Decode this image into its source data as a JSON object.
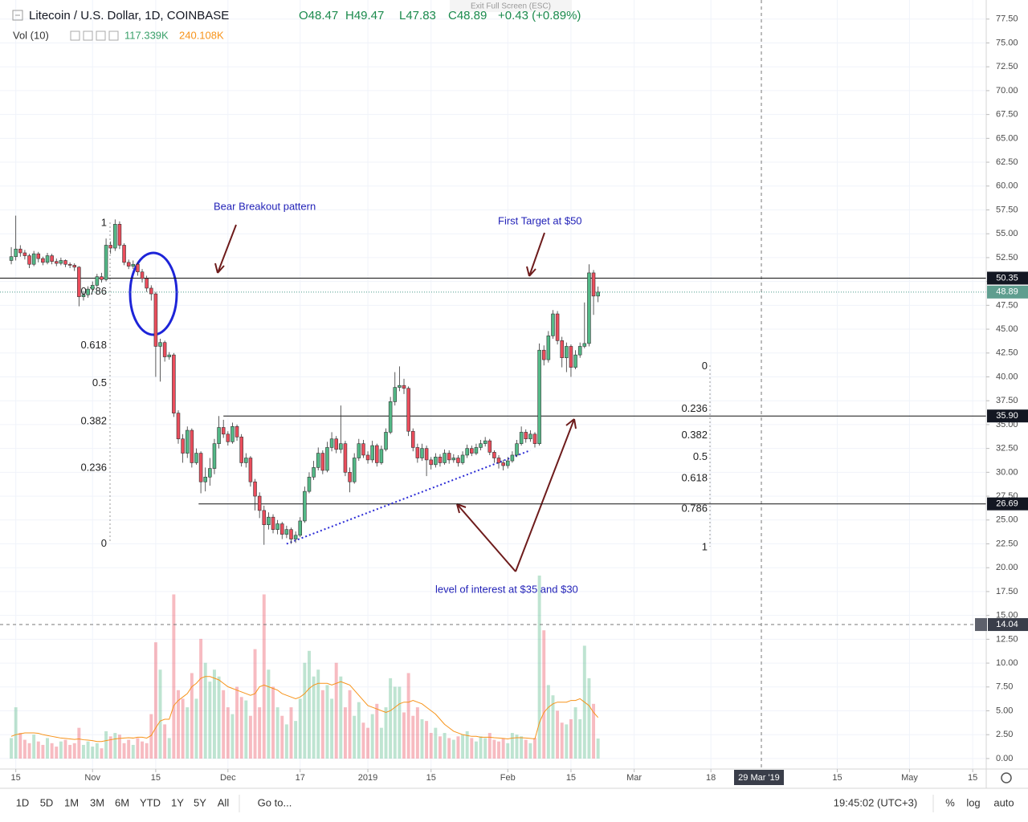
{
  "header": {
    "symbol": "Litecoin / U.S. Dollar, 1D, COINBASE",
    "open": "O48.47",
    "high": "H49.47",
    "low": "L47.83",
    "close": "C48.89",
    "change": "+0.43 (+0.89%)",
    "volume_label": "Vol (10)",
    "volume": "117.339K",
    "volume_ma": "240.108K",
    "exit": "Exit Full Screen (ESC)"
  },
  "chart_data": {
    "type": "candlestick",
    "open": [
      52.2,
      52.6,
      53.4,
      53.0,
      52.7,
      51.8,
      52.9,
      52.4,
      52.0,
      52.7,
      52.1,
      51.9,
      52.2,
      51.8,
      51.7,
      51.5,
      48.4,
      48.6,
      49.2,
      49.6,
      50.5,
      50.2,
      53.8,
      53.5,
      56.0,
      53.8,
      52.0,
      51.6,
      51.8,
      51.0,
      50.3,
      49.3,
      48.7,
      43.2,
      43.6,
      42.1,
      42.3,
      36.2,
      33.5,
      32.0,
      34.4,
      31.0,
      32.0,
      29.0,
      29.5,
      30.4,
      33.0,
      34.7,
      34.0,
      33.2,
      34.8,
      33.7,
      31.0,
      31.5,
      29.0,
      27.5,
      26.0,
      24.5,
      25.3,
      24.0,
      24.6,
      23.5,
      24.0,
      23.0,
      23.4,
      24.9,
      28.0,
      29.5,
      30.5,
      32.0,
      30.2,
      32.6,
      33.5,
      32.4,
      33.0,
      30.0,
      29.0,
      31.5,
      33.0,
      31.8,
      31.3,
      32.8,
      31.0,
      32.4,
      34.2,
      37.4,
      38.9,
      39.1,
      38.8,
      34.3,
      32.6,
      31.5,
      32.5,
      31.3,
      30.8,
      31.6,
      31.0,
      32.0,
      31.3,
      31.5,
      31.0,
      31.8,
      32.5,
      32.0,
      32.6,
      33.0,
      33.3,
      32.1,
      31.5,
      31.0,
      30.7,
      31.2,
      31.8,
      33.0,
      34.2,
      33.5,
      34.0,
      33.0,
      42.8,
      41.8,
      44.3,
      46.6,
      43.8,
      42.0,
      43.2,
      41.0,
      42.3,
      43.2,
      43.5,
      50.9,
      48.47
    ],
    "high": [
      53.6,
      56.9,
      53.8,
      53.3,
      52.9,
      53.2,
      53.1,
      52.6,
      53.0,
      52.9,
      52.4,
      52.5,
      52.3,
      52.0,
      51.9,
      51.6,
      49.0,
      49.5,
      50.0,
      50.8,
      50.9,
      54.5,
      54.2,
      56.5,
      56.3,
      54.0,
      52.3,
      52.2,
      52.0,
      51.3,
      50.6,
      49.6,
      48.9,
      44.0,
      43.8,
      42.6,
      42.5,
      36.5,
      34.0,
      34.8,
      34.6,
      32.5,
      32.2,
      30.5,
      31.5,
      33.5,
      35.9,
      35.5,
      34.3,
      35.2,
      35.0,
      34.0,
      32.0,
      31.7,
      29.3,
      27.9,
      26.5,
      25.8,
      25.6,
      25.0,
      24.8,
      24.4,
      24.2,
      23.8,
      25.3,
      28.5,
      30.0,
      31.2,
      32.6,
      32.3,
      33.2,
      34.2,
      33.8,
      37.0,
      33.3,
      30.5,
      32.0,
      33.5,
      33.4,
      32.2,
      33.3,
      33.0,
      32.8,
      34.6,
      37.9,
      40.5,
      41.1,
      39.8,
      39.0,
      34.6,
      33.0,
      33.0,
      32.8,
      31.6,
      32.0,
      31.9,
      32.4,
      32.3,
      31.9,
      31.8,
      32.2,
      32.9,
      32.8,
      33.0,
      33.4,
      33.7,
      33.5,
      32.3,
      31.8,
      31.3,
      31.6,
      32.2,
      33.4,
      34.8,
      34.5,
      34.4,
      34.2,
      43.5,
      43.3,
      44.8,
      47.0,
      46.9,
      44.2,
      43.6,
      43.4,
      42.8,
      43.6,
      47.8,
      51.8,
      51.2,
      49.47
    ],
    "low": [
      51.8,
      52.2,
      52.6,
      52.3,
      51.4,
      51.6,
      52.0,
      51.7,
      51.8,
      51.8,
      51.6,
      51.7,
      51.5,
      51.4,
      51.1,
      47.4,
      48.0,
      48.3,
      48.9,
      49.4,
      49.9,
      50.0,
      52.9,
      53.2,
      53.4,
      51.7,
      51.3,
      51.3,
      50.6,
      49.9,
      48.9,
      48.0,
      40.0,
      39.5,
      41.6,
      41.8,
      35.8,
      33.0,
      31.0,
      31.5,
      30.5,
      30.8,
      27.8,
      28.0,
      28.6,
      29.8,
      32.5,
      33.6,
      32.8,
      33.0,
      33.3,
      30.6,
      30.5,
      28.5,
      26.0,
      25.2,
      22.4,
      24.0,
      23.6,
      23.5,
      23.0,
      23.1,
      22.5,
      22.6,
      23.2,
      24.7,
      27.8,
      29.2,
      30.2,
      29.8,
      30.0,
      32.2,
      32.0,
      32.0,
      29.6,
      27.9,
      28.8,
      31.2,
      31.5,
      30.9,
      31.0,
      30.6,
      30.8,
      32.2,
      34.0,
      37.0,
      38.5,
      38.2,
      33.8,
      32.2,
      31.0,
      31.2,
      29.6,
      30.3,
      30.5,
      30.6,
      30.8,
      30.9,
      31.0,
      30.6,
      30.8,
      31.5,
      31.7,
      31.8,
      32.3,
      32.7,
      31.8,
      31.0,
      30.4,
      30.2,
      30.4,
      31.0,
      31.6,
      32.8,
      33.1,
      33.2,
      32.6,
      32.8,
      41.2,
      41.5,
      44.0,
      43.4,
      41.0,
      40.5,
      40.0,
      40.8,
      42.0,
      43.0,
      43.2,
      46.5,
      47.83
    ],
    "close": [
      52.6,
      53.4,
      53.0,
      52.7,
      51.8,
      52.9,
      52.4,
      52.0,
      52.7,
      52.1,
      51.9,
      52.2,
      51.8,
      51.7,
      51.5,
      48.4,
      48.6,
      49.2,
      49.6,
      50.5,
      50.2,
      53.8,
      53.5,
      56.0,
      53.8,
      52.0,
      51.6,
      51.8,
      51.0,
      50.3,
      49.3,
      48.7,
      43.2,
      43.6,
      42.1,
      42.3,
      36.2,
      33.5,
      32.0,
      34.4,
      31.0,
      32.0,
      29.0,
      29.5,
      30.4,
      33.0,
      34.7,
      34.0,
      33.2,
      34.8,
      33.7,
      31.0,
      31.5,
      29.0,
      27.5,
      26.0,
      24.5,
      25.3,
      24.0,
      24.6,
      23.5,
      24.0,
      23.0,
      23.4,
      24.9,
      28.0,
      29.5,
      30.5,
      32.0,
      30.2,
      32.6,
      33.5,
      32.4,
      33.0,
      30.0,
      29.0,
      31.5,
      33.0,
      31.8,
      31.3,
      32.8,
      31.0,
      32.4,
      34.2,
      37.4,
      38.9,
      39.1,
      38.8,
      34.3,
      32.6,
      31.5,
      32.5,
      31.3,
      30.8,
      31.6,
      31.0,
      32.0,
      31.3,
      31.5,
      31.0,
      31.8,
      32.5,
      32.0,
      32.6,
      33.0,
      33.3,
      32.1,
      31.5,
      31.0,
      30.7,
      31.2,
      31.8,
      33.0,
      34.2,
      33.5,
      34.0,
      33.0,
      42.8,
      41.8,
      44.3,
      46.6,
      43.8,
      42.0,
      43.2,
      41.0,
      42.3,
      43.2,
      43.5,
      50.9,
      48.47,
      48.89
    ],
    "up_color": "#53b987",
    "down_color": "#eb4d5c",
    "volume": {
      "values": [
        120,
        300,
        150,
        110,
        90,
        140,
        100,
        80,
        120,
        90,
        70,
        100,
        110,
        80,
        90,
        180,
        80,
        100,
        70,
        90,
        60,
        160,
        130,
        150,
        140,
        90,
        110,
        80,
        120,
        100,
        90,
        260,
        680,
        520,
        200,
        120,
        960,
        400,
        350,
        300,
        500,
        350,
        700,
        560,
        450,
        520,
        480,
        400,
        300,
        260,
        420,
        360,
        340,
        250,
        640,
        300,
        960,
        520,
        420,
        300,
        250,
        200,
        300,
        220,
        350,
        560,
        630,
        480,
        520,
        400,
        430,
        350,
        560,
        480,
        300,
        400,
        250,
        330,
        210,
        180,
        260,
        320,
        180,
        300,
        470,
        420,
        420,
        270,
        500,
        250,
        300,
        230,
        220,
        150,
        180,
        130,
        150,
        120,
        110,
        130,
        140,
        160,
        120,
        100,
        130,
        120,
        150,
        110,
        100,
        120,
        90,
        150,
        140,
        130,
        110,
        90,
        120,
        1070,
        750,
        430,
        370,
        280,
        210,
        200,
        230,
        300,
        230,
        660,
        470,
        320,
        117.339
      ],
      "ma": [
        130,
        140,
        145,
        150,
        150,
        150,
        148,
        140,
        135,
        130,
        125,
        120,
        118,
        115,
        112,
        115,
        110,
        108,
        105,
        100,
        100,
        105,
        110,
        115,
        118,
        120,
        122,
        120,
        125,
        125,
        120,
        135,
        180,
        220,
        230,
        230,
        310,
        340,
        360,
        380,
        420,
        440,
        470,
        480,
        480,
        470,
        460,
        440,
        420,
        410,
        400,
        390,
        380,
        370,
        380,
        420,
        430,
        420,
        410,
        400,
        380,
        370,
        360,
        350,
        360,
        380,
        410,
        430,
        440,
        440,
        440,
        430,
        440,
        450,
        440,
        430,
        400,
        370,
        340,
        310,
        300,
        290,
        280,
        270,
        280,
        300,
        320,
        330,
        330,
        340,
        330,
        320,
        300,
        280,
        260,
        230,
        200,
        180,
        160,
        150,
        140,
        135,
        130,
        130,
        125,
        125,
        125,
        122,
        120,
        118,
        115,
        120,
        122,
        122,
        120,
        118,
        115,
        210,
        270,
        300,
        320,
        330,
        330,
        330,
        340,
        340,
        350,
        330,
        310,
        270,
        240.108
      ],
      "lim": [
        0,
        1150
      ],
      "ma_color": "#f7931a"
    },
    "xlim": [
      -2.5,
      216
    ],
    "xticks": [
      {
        "value": 1,
        "label": "15"
      },
      {
        "value": 18,
        "label": "Nov"
      },
      {
        "value": 32,
        "label": "15"
      },
      {
        "value": 48,
        "label": "Dec"
      },
      {
        "value": 64,
        "label": "17"
      },
      {
        "value": 79,
        "label": "2019"
      },
      {
        "value": 93,
        "label": "15"
      },
      {
        "value": 110,
        "label": "Feb"
      },
      {
        "value": 124,
        "label": "15"
      },
      {
        "value": 138,
        "label": "Mar"
      },
      {
        "value": 155,
        "label": "18"
      },
      {
        "value": 183,
        "label": "15"
      },
      {
        "value": 199,
        "label": "May"
      },
      {
        "value": 213,
        "label": "15"
      }
    ],
    "ylim": [
      -1.1,
      79.5
    ],
    "yticks": [
      {
        "value": 0,
        "label": "0.00"
      },
      {
        "value": 2.5,
        "label": "2.50"
      },
      {
        "value": 5,
        "label": "5.00"
      },
      {
        "value": 7.5,
        "label": "7.50"
      },
      {
        "value": 10,
        "label": "10.00"
      },
      {
        "value": 12.5,
        "label": "12.50"
      },
      {
        "value": 15,
        "label": "15.00"
      },
      {
        "value": 17.5,
        "label": "17.50"
      },
      {
        "value": 20,
        "label": "20.00"
      },
      {
        "value": 22.5,
        "label": "22.50"
      },
      {
        "value": 25,
        "label": "25.00"
      },
      {
        "value": 27.5,
        "label": "27.50"
      },
      {
        "value": 30,
        "label": "30.00"
      },
      {
        "value": 32.5,
        "label": "32.50"
      },
      {
        "value": 35,
        "label": "35.00"
      },
      {
        "value": 37.5,
        "label": "37.50"
      },
      {
        "value": 40,
        "label": "40.00"
      },
      {
        "value": 42.5,
        "label": "42.50"
      },
      {
        "value": 45,
        "label": "45.00"
      },
      {
        "value": 47.5,
        "label": "47.50"
      },
      {
        "value": 50,
        "label": "50.00"
      },
      {
        "value": 52.5,
        "label": "52.50"
      },
      {
        "value": 55,
        "label": "55.00"
      },
      {
        "value": 57.5,
        "label": "57.50"
      },
      {
        "value": 60,
        "label": "60.00"
      },
      {
        "value": 62.5,
        "label": "62.50"
      },
      {
        "value": 65,
        "label": "65.00"
      },
      {
        "value": 67.5,
        "label": "67.50"
      },
      {
        "value": 70,
        "label": "70.00"
      },
      {
        "value": 72.5,
        "label": "72.50"
      },
      {
        "value": 75,
        "label": "75.00"
      },
      {
        "value": 77.5,
        "label": "77.50"
      }
    ],
    "grid": true,
    "levels": [
      {
        "value": 50.35
      },
      {
        "value": {
          "value": 35.9,
          "label": "35.90"
        },
        "from": 47
      },
      {
        "value": 26.69,
        "from": 41.5
      }
    ],
    "crosshair": {
      "price": 14.04,
      "index": 166,
      "date_label": "29 Mar '19"
    },
    "fib": [
      {
        "levels": [
          1,
          0.786,
          0.618,
          0.5,
          0.382,
          0.236,
          0
        ],
        "price_at_0": 22.5,
        "price_at_1": 56.1
      },
      {
        "levels": [
          0,
          0.236,
          0.382,
          0.5,
          0.618,
          0.786,
          1
        ],
        "price_at_0": 41.1,
        "price_at_1": 22.1
      }
    ],
    "trendline": {
      "from": [
        61,
        22.5
      ],
      "to": [
        115,
        32.3
      ]
    },
    "annotations": [
      "Bear Breakout pattern",
      "First Target at $50",
      "level of interest at $35 and $30"
    ]
  },
  "toolbar": {
    "ranges": [
      "1D",
      "5D",
      "1M",
      "3M",
      "6M",
      "YTD",
      "1Y",
      "5Y",
      "All"
    ],
    "goto": "Go to...",
    "time": "19:45:02 (UTC+3)",
    "options": [
      "%",
      "log",
      "auto"
    ]
  }
}
